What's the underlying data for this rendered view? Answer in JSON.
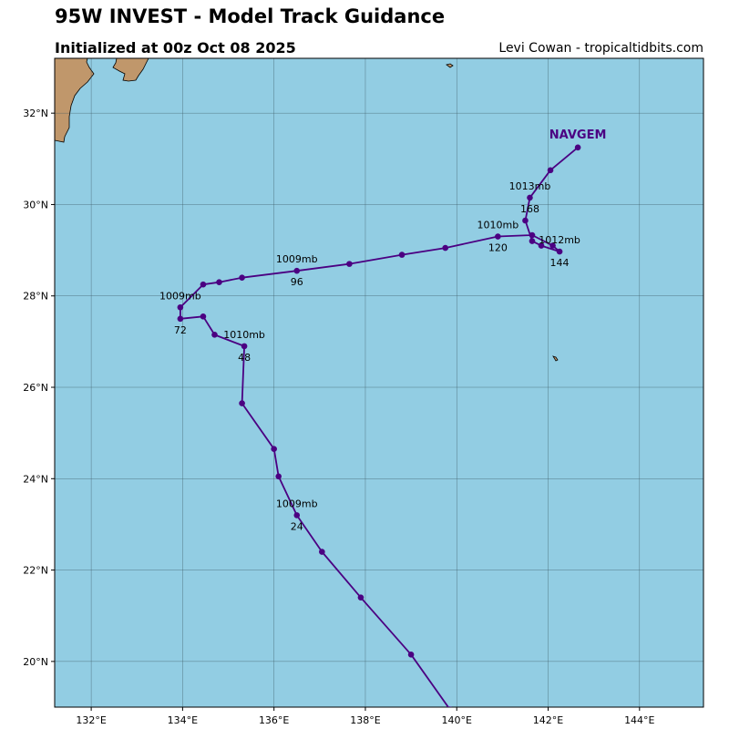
{
  "header": {
    "title": "95W INVEST - Model Track Guidance",
    "subtitle": "Initialized at 00z Oct 08 2025",
    "credit": "Levi Cowan - tropicaltidbits.com"
  },
  "map": {
    "extent": {
      "lon_min": 131.2,
      "lon_max": 145.4,
      "lat_min": 19.0,
      "lat_max": 33.2
    },
    "colors": {
      "ocean": "#92CDE3",
      "land": "#C0976B",
      "coastline": "#000000",
      "grid": "#3a5560",
      "track": "#4B0082"
    },
    "lon_ticks": [
      {
        "value": 132,
        "label": "132°E"
      },
      {
        "value": 134,
        "label": "134°E"
      },
      {
        "value": 136,
        "label": "136°E"
      },
      {
        "value": 138,
        "label": "138°E"
      },
      {
        "value": 140,
        "label": "140°E"
      },
      {
        "value": 142,
        "label": "142°E"
      },
      {
        "value": 144,
        "label": "144°E"
      }
    ],
    "lat_ticks": [
      {
        "value": 20,
        "label": "20°N"
      },
      {
        "value": 22,
        "label": "22°N"
      },
      {
        "value": 24,
        "label": "24°N"
      },
      {
        "value": 26,
        "label": "26°N"
      },
      {
        "value": 28,
        "label": "28°N"
      },
      {
        "value": 30,
        "label": "30°N"
      },
      {
        "value": 32,
        "label": "32°N"
      }
    ],
    "tracks": [
      {
        "model": "NAVGEM",
        "points": [
          {
            "lon": 139.85,
            "lat": 18.95
          },
          {
            "lon": 139.0,
            "lat": 20.15
          },
          {
            "lon": 137.9,
            "lat": 21.4
          },
          {
            "lon": 137.05,
            "lat": 22.4
          },
          {
            "lon": 136.5,
            "lat": 23.2
          },
          {
            "lon": 136.1,
            "lat": 24.05
          },
          {
            "lon": 136.0,
            "lat": 24.65
          },
          {
            "lon": 135.3,
            "lat": 25.65
          },
          {
            "lon": 135.35,
            "lat": 26.9
          },
          {
            "lon": 134.7,
            "lat": 27.15
          },
          {
            "lon": 134.45,
            "lat": 27.55
          },
          {
            "lon": 133.95,
            "lat": 27.5
          },
          {
            "lon": 133.95,
            "lat": 27.75
          },
          {
            "lon": 134.45,
            "lat": 28.25
          },
          {
            "lon": 134.8,
            "lat": 28.3
          },
          {
            "lon": 135.3,
            "lat": 28.4
          },
          {
            "lon": 136.5,
            "lat": 28.55
          },
          {
            "lon": 137.65,
            "lat": 28.7
          },
          {
            "lon": 138.8,
            "lat": 28.9
          },
          {
            "lon": 139.75,
            "lat": 29.05
          },
          {
            "lon": 140.9,
            "lat": 29.3
          },
          {
            "lon": 141.65,
            "lat": 29.33
          },
          {
            "lon": 142.1,
            "lat": 29.1
          },
          {
            "lon": 142.25,
            "lat": 28.97
          },
          {
            "lon": 141.85,
            "lat": 29.1
          },
          {
            "lon": 141.65,
            "lat": 29.2
          },
          {
            "lon": 141.5,
            "lat": 29.65
          },
          {
            "lon": 141.6,
            "lat": 30.15
          },
          {
            "lon": 142.05,
            "lat": 30.75
          },
          {
            "lon": 142.65,
            "lat": 31.25
          }
        ],
        "pressure_labels": [
          {
            "text": "1009mb",
            "lon": 136.5,
            "lat": 23.2
          },
          {
            "text": "1010mb",
            "lon": 135.35,
            "lat": 26.9
          },
          {
            "text": "1009mb",
            "lon": 133.95,
            "lat": 27.75
          },
          {
            "text": "1009mb",
            "lon": 136.5,
            "lat": 28.55
          },
          {
            "text": "1010mb",
            "lon": 140.9,
            "lat": 29.3
          },
          {
            "text": "1012mb",
            "lon": 142.25,
            "lat": 28.97
          },
          {
            "text": "1013mb",
            "lon": 141.6,
            "lat": 30.15
          }
        ],
        "hour_labels": [
          {
            "text": "24",
            "lon": 136.5,
            "lat": 23.2
          },
          {
            "text": "48",
            "lon": 135.35,
            "lat": 26.9
          },
          {
            "text": "72",
            "lon": 133.95,
            "lat": 27.5
          },
          {
            "text": "96",
            "lon": 136.5,
            "lat": 28.55
          },
          {
            "text": "120",
            "lon": 140.9,
            "lat": 29.3
          },
          {
            "text": "144",
            "lon": 142.25,
            "lat": 28.97
          },
          {
            "text": "168",
            "lon": 141.6,
            "lat": 30.15
          }
        ],
        "name_label": {
          "lon": 142.65,
          "lat": 31.25
        }
      }
    ]
  }
}
